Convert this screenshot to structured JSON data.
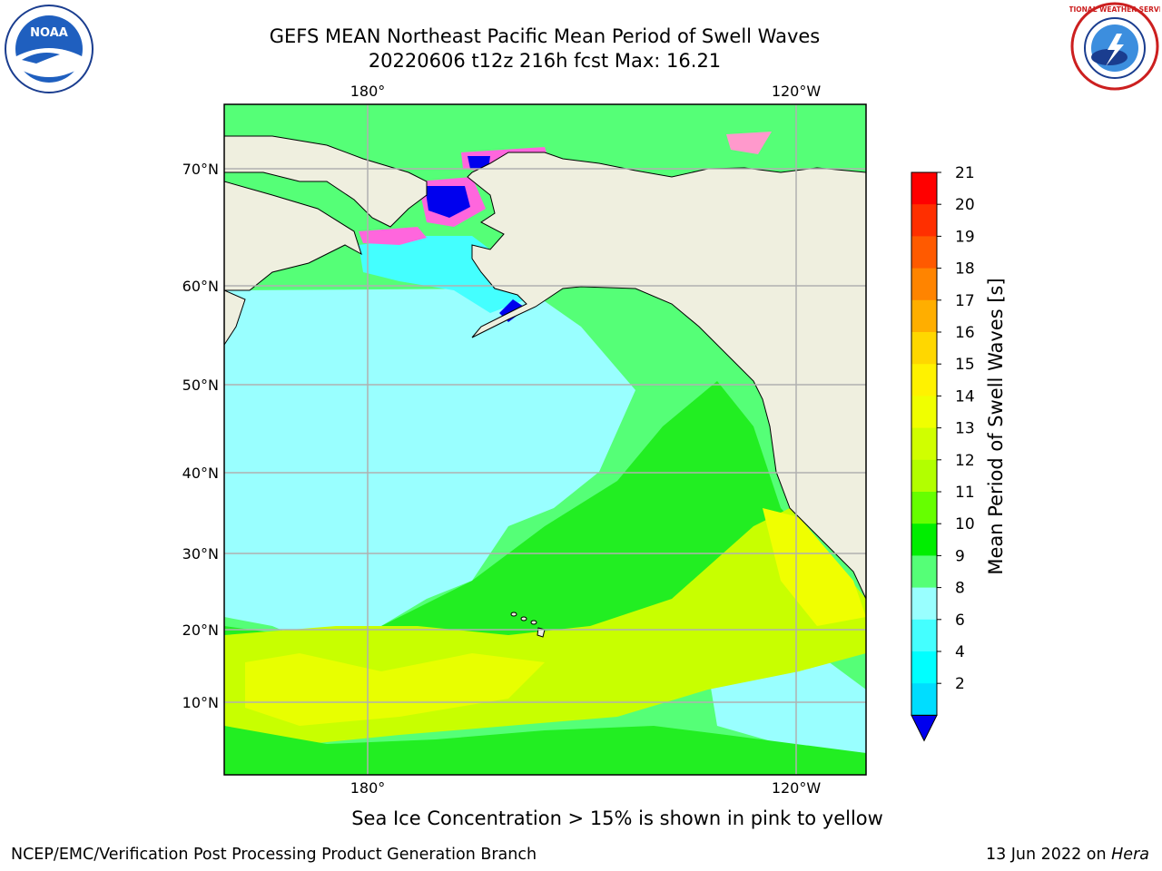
{
  "title": {
    "line1": "GEFS MEAN Northeast Pacific Mean Period of Swell Waves",
    "line2": "20220606 t12z 216h fcst   Max: 16.21"
  },
  "map": {
    "lon_top_labels": [
      "180°",
      "120°W"
    ],
    "lon_bottom_labels": [
      "180°",
      "120°W"
    ],
    "lat_labels": [
      "70°N",
      "60°N",
      "50°N",
      "40°N",
      "30°N",
      "20°N",
      "10°N"
    ],
    "land_color": "#efefdf",
    "grid_color": "#b0b0b0"
  },
  "colorbar": {
    "label": "Mean Period of Swell Waves [s]",
    "ticks": [
      "21",
      "20",
      "19",
      "18",
      "17",
      "16",
      "15",
      "14",
      "13",
      "12",
      "11",
      "10",
      "9",
      "8",
      "6",
      "4",
      "2"
    ],
    "colors": [
      "#ff0000",
      "#ff2f00",
      "#ff5a00",
      "#ff8400",
      "#ffae00",
      "#ffd700",
      "#fff200",
      "#f0ff00",
      "#d0ff00",
      "#b2ff00",
      "#66ff00",
      "#00ee00",
      "#55ff77",
      "#99ffff",
      "#44ffff",
      "#00ffff",
      "#00ddff",
      "#0070ff"
    ],
    "extend_color": "#0000ee"
  },
  "sea_ice_note": "Sea Ice Concentration > 15% is shown in pink to yellow",
  "credit_left": "NCEP/EMC/Verification Post Processing Product Generation Branch",
  "credit_right_date": "13 Jun 2022 on ",
  "credit_right_host": "Hera",
  "logos": {
    "noaa_text": "NOAA",
    "nws_text": "NATIONAL WEATHER SERVICE"
  }
}
